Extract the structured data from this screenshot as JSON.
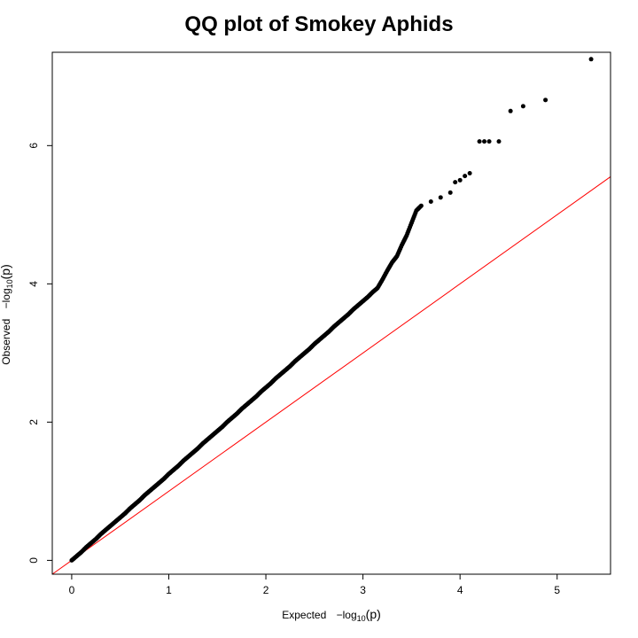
{
  "chart_data": {
    "type": "scatter",
    "title": "QQ plot of Smokey Aphids",
    "xlabel": {
      "prefix": "Expected",
      "fn": "−log",
      "sub": "10",
      "arg": "(p)"
    },
    "ylabel": {
      "prefix": "Observed",
      "fn": "−log",
      "sub": "10",
      "arg": "(p)"
    },
    "xlim": [
      -0.2,
      5.55
    ],
    "ylim": [
      -0.2,
      7.35
    ],
    "xticks": [
      0,
      1,
      2,
      3,
      4,
      5
    ],
    "yticks": [
      0,
      2,
      4,
      6
    ],
    "grid": false,
    "point_color": "#000000",
    "reference_line": {
      "slope": 1,
      "intercept": 0,
      "color": "#ff0000"
    },
    "points": [
      [
        0.0,
        0.0
      ],
      [
        0.05,
        0.06
      ],
      [
        0.1,
        0.12
      ],
      [
        0.15,
        0.19
      ],
      [
        0.2,
        0.25
      ],
      [
        0.25,
        0.31
      ],
      [
        0.3,
        0.38
      ],
      [
        0.35,
        0.44
      ],
      [
        0.4,
        0.5
      ],
      [
        0.45,
        0.56
      ],
      [
        0.5,
        0.62
      ],
      [
        0.55,
        0.68
      ],
      [
        0.6,
        0.75
      ],
      [
        0.65,
        0.81
      ],
      [
        0.7,
        0.87
      ],
      [
        0.75,
        0.94
      ],
      [
        0.8,
        1.0
      ],
      [
        0.85,
        1.06
      ],
      [
        0.9,
        1.12
      ],
      [
        0.95,
        1.18
      ],
      [
        1.0,
        1.25
      ],
      [
        1.05,
        1.31
      ],
      [
        1.1,
        1.37
      ],
      [
        1.15,
        1.44
      ],
      [
        1.2,
        1.5
      ],
      [
        1.25,
        1.56
      ],
      [
        1.3,
        1.62
      ],
      [
        1.35,
        1.69
      ],
      [
        1.4,
        1.75
      ],
      [
        1.45,
        1.81
      ],
      [
        1.5,
        1.87
      ],
      [
        1.55,
        1.93
      ],
      [
        1.6,
        2.0
      ],
      [
        1.65,
        2.06
      ],
      [
        1.7,
        2.12
      ],
      [
        1.75,
        2.19
      ],
      [
        1.8,
        2.25
      ],
      [
        1.85,
        2.31
      ],
      [
        1.9,
        2.37
      ],
      [
        1.95,
        2.44
      ],
      [
        2.0,
        2.5
      ],
      [
        2.05,
        2.56
      ],
      [
        2.1,
        2.63
      ],
      [
        2.15,
        2.69
      ],
      [
        2.2,
        2.75
      ],
      [
        2.25,
        2.81
      ],
      [
        2.3,
        2.88
      ],
      [
        2.35,
        2.94
      ],
      [
        2.4,
        3.0
      ],
      [
        2.45,
        3.06
      ],
      [
        2.5,
        3.13
      ],
      [
        2.55,
        3.19
      ],
      [
        2.6,
        3.25
      ],
      [
        2.65,
        3.31
      ],
      [
        2.7,
        3.38
      ],
      [
        2.75,
        3.44
      ],
      [
        2.8,
        3.5
      ],
      [
        2.85,
        3.56
      ],
      [
        2.9,
        3.63
      ],
      [
        2.95,
        3.69
      ],
      [
        3.0,
        3.75
      ],
      [
        3.05,
        3.81
      ],
      [
        3.1,
        3.88
      ],
      [
        3.15,
        3.94
      ],
      [
        3.2,
        4.06
      ],
      [
        3.25,
        4.19
      ],
      [
        3.3,
        4.31
      ],
      [
        3.35,
        4.4
      ],
      [
        3.4,
        4.56
      ],
      [
        3.45,
        4.7
      ],
      [
        3.5,
        4.88
      ],
      [
        3.55,
        5.06
      ],
      [
        3.6,
        5.13
      ],
      [
        3.7,
        5.19
      ],
      [
        3.8,
        5.25
      ],
      [
        3.9,
        5.32
      ],
      [
        3.95,
        5.47
      ],
      [
        4.0,
        5.5
      ],
      [
        4.05,
        5.56
      ],
      [
        4.1,
        5.6
      ],
      [
        4.2,
        6.06
      ],
      [
        4.25,
        6.06
      ],
      [
        4.3,
        6.06
      ],
      [
        4.4,
        6.06
      ],
      [
        4.52,
        6.5
      ],
      [
        4.65,
        6.57
      ],
      [
        4.88,
        6.66
      ],
      [
        5.35,
        7.25
      ]
    ]
  }
}
